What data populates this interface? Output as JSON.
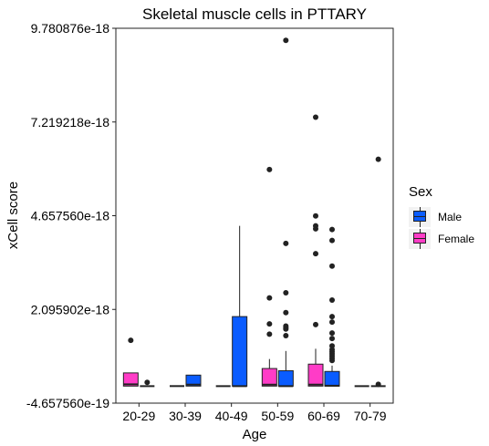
{
  "chart_data": {
    "type": "box",
    "title": "Skeletal muscle cells in PTTARY",
    "xlabel": "Age",
    "ylabel": "xCell score",
    "categories": [
      "20-29",
      "30-39",
      "40-49",
      "50-59",
      "60-69",
      "70-79"
    ],
    "yticks": [
      {
        "value": -4.65756e-19,
        "label": "-4.657560e-19"
      },
      {
        "value": 2.095902e-18,
        "label": "2.095902e-18"
      },
      {
        "value": 4.65756e-18,
        "label": "4.657560e-18"
      },
      {
        "value": 7.219218e-18,
        "label": "7.219218e-18"
      },
      {
        "value": 9.780876e-18,
        "label": "9.780876e-18"
      }
    ],
    "ylim": [
      -4.65756e-19,
      9.780876e-18
    ],
    "legend": {
      "title": "Sex",
      "position": "right",
      "entries": [
        {
          "label": "Male",
          "color": "#0a5cff"
        },
        {
          "label": "Female",
          "color": "#ff3cc7"
        }
      ]
    },
    "series": [
      {
        "name": "Female",
        "color": "#ff3cc7",
        "boxes": [
          {
            "category": "20-29",
            "min": 0,
            "q1": 0,
            "median": 5e-20,
            "q3": 3.6e-19,
            "max": 3.6e-19,
            "outliers": [
              1.25e-18
            ]
          },
          {
            "category": "30-39",
            "min": 0,
            "q1": 0,
            "median": 0,
            "q3": 0,
            "max": 0,
            "outliers": []
          },
          {
            "category": "40-49",
            "min": 0,
            "q1": 0,
            "median": 0,
            "q3": 0,
            "max": 0,
            "outliers": []
          },
          {
            "category": "50-59",
            "min": 0,
            "q1": 0,
            "median": 4e-20,
            "q3": 4.8e-19,
            "max": 7.4e-19,
            "outliers": [
              1.42e-18,
              1.7e-18,
              2.41e-18,
              5.92e-18
            ]
          },
          {
            "category": "60-69",
            "min": 0,
            "q1": 0,
            "median": 4e-20,
            "q3": 6e-19,
            "max": 1.02e-18,
            "outliers": [
              1.68e-18,
              3.62e-18,
              4.3e-18,
              4.38e-18,
              4.65e-18,
              7.35e-18
            ]
          },
          {
            "category": "70-79",
            "min": 0,
            "q1": 0,
            "median": 0,
            "q3": 0,
            "max": 0,
            "outliers": []
          }
        ]
      },
      {
        "name": "Male",
        "color": "#0a5cff",
        "boxes": [
          {
            "category": "20-29",
            "min": 0,
            "q1": 0,
            "median": 0,
            "q3": 0,
            "max": 0,
            "outliers": [
              1e-19
            ]
          },
          {
            "category": "30-39",
            "min": 0,
            "q1": 0,
            "median": 4e-20,
            "q3": 3e-19,
            "max": 3e-19,
            "outliers": []
          },
          {
            "category": "40-49",
            "min": 0,
            "q1": 0,
            "median": 0,
            "q3": 1.9e-18,
            "max": 4.38e-18,
            "outliers": []
          },
          {
            "category": "50-59",
            "min": 0,
            "q1": 0,
            "median": 0,
            "q3": 4.2e-19,
            "max": 9.6e-19,
            "outliers": [
              1.38e-18,
              1.56e-18,
              1.6e-18,
              1.64e-18,
              2.01e-18,
              2.55e-18,
              3.9e-18,
              9.45e-18
            ]
          },
          {
            "category": "60-69",
            "min": 0,
            "q1": 0,
            "median": 1e-20,
            "q3": 4e-19,
            "max": 5.6e-19,
            "outliers": [
              7e-19,
              7.6e-19,
              8.2e-19,
              8.8e-19,
              9.4e-19,
              1e-18,
              1.1e-18,
              1.3e-18,
              1.45e-18,
              1.75e-18,
              1.9e-18,
              2.35e-18,
              3.28e-18,
              3.98e-18,
              4.28e-18
            ]
          },
          {
            "category": "70-79",
            "min": 0,
            "q1": 0,
            "median": 0,
            "q3": 0,
            "max": 0,
            "outliers": [
              5e-20,
              6.2e-18
            ]
          }
        ]
      }
    ],
    "grid": false
  }
}
